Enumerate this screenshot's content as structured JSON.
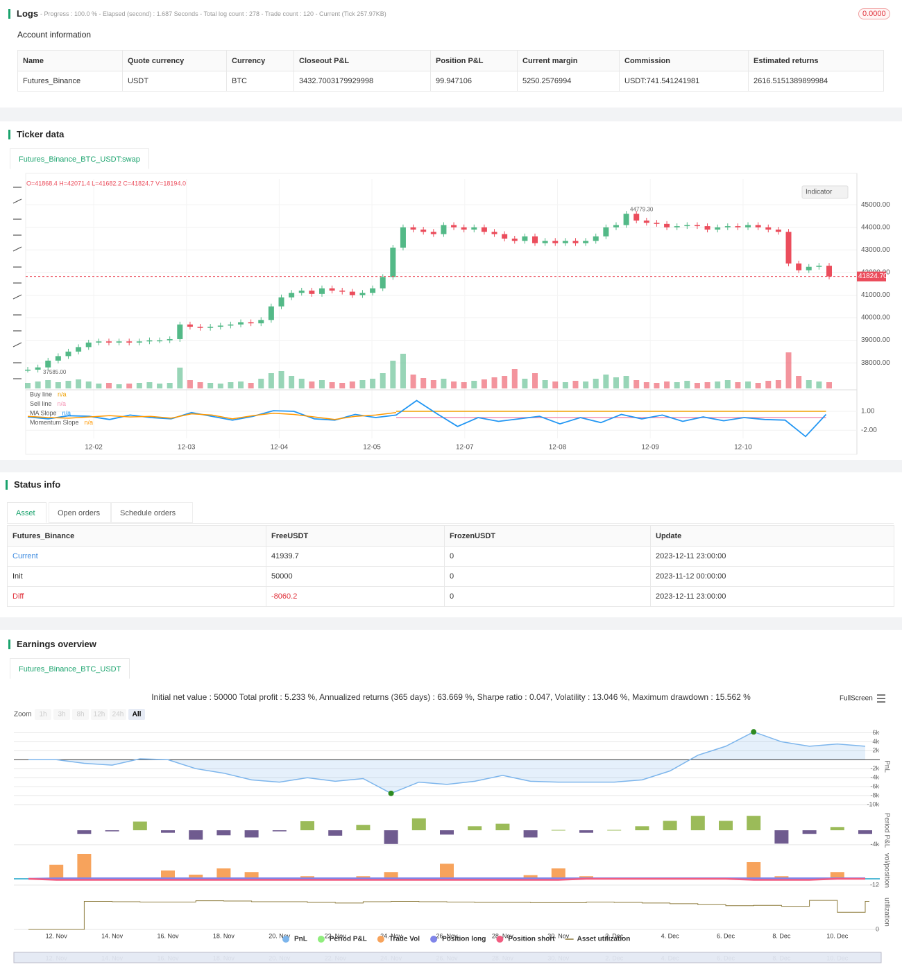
{
  "logs": {
    "title": "Logs",
    "summary": "- Progress : 100.0 % - Elapsed (second) : 1.687 Seconds - Total log count : 278 - Trade count : 120 - Current (Tick 257.97KB)",
    "badge": "0.0000"
  },
  "account": {
    "title": "Account information",
    "headers": [
      "Name",
      "Quote currency",
      "Currency",
      "Closeout P&L",
      "Position P&L",
      "Current margin",
      "Commission",
      "Estimated returns"
    ],
    "rows": [
      [
        "Futures_Binance",
        "USDT",
        "BTC",
        "3432.7003179929998",
        "99.947106",
        "5250.2576994",
        "USDT:741.541241981",
        "2616.5151389899984"
      ]
    ]
  },
  "ticker": {
    "title": "Ticker data",
    "tab": "Futures_Binance_BTC_USDT:swap",
    "indicator_button": "Indicator"
  },
  "status": {
    "title": "Status info",
    "tabs": [
      "Asset",
      "Open orders",
      "Schedule orders"
    ],
    "headers": [
      "Futures_Binance",
      "FreeUSDT",
      "FrozenUSDT",
      "Update"
    ],
    "rows": [
      [
        "Current",
        "41939.7",
        "0",
        "2023-12-11 23:00:00"
      ],
      [
        "Init",
        "50000",
        "0",
        "2023-11-12 00:00:00"
      ],
      [
        "Diff",
        "-8060.2",
        "0",
        "2023-12-11 23:00:00"
      ]
    ]
  },
  "earnings": {
    "title": "Earnings overview",
    "tab": "Futures_Binance_BTC_USDT",
    "summary": "Initial net value : 50000 Total profit : 5.233 %, Annualized returns (365 days) : 63.669 %, Sharpe ratio : 0.047, Volatility : 13.046 %, Maximum drawdown : 15.562 %",
    "fullscreen": "FullScreen",
    "zoom_label": "Zoom",
    "zoom_buttons": [
      "1h",
      "3h",
      "8h",
      "12h",
      "24h",
      "All"
    ]
  },
  "chart_data": [
    {
      "type": "candlestick",
      "ohlc_label": "O=41868.4 H=42071.4 L=41682.2 C=41824.7 V=18194.0",
      "x_labels": [
        "12-02",
        "12-03",
        "12-04",
        "12-05",
        "12-07",
        "12-08",
        "12-09",
        "12-10"
      ],
      "values": [
        37700,
        37800,
        38100,
        38300,
        38500,
        38700,
        38900,
        38950,
        38900,
        38950,
        38900,
        38950,
        39000,
        39000,
        39050,
        39700,
        39600,
        39550,
        39600,
        39650,
        39700,
        39800,
        39750,
        39900,
        40500,
        40900,
        41100,
        41200,
        41050,
        41300,
        41200,
        41150,
        41000,
        41100,
        41300,
        41800,
        43100,
        44000,
        43900,
        43800,
        43700,
        44100,
        44000,
        43900,
        44000,
        43800,
        43700,
        43500,
        43400,
        43600,
        43300,
        43400,
        43300,
        43400,
        43300,
        43400,
        43600,
        44000,
        44100,
        44600,
        44300,
        44200,
        44150,
        44000,
        44050,
        44100,
        44050,
        43900,
        44000,
        44050,
        44000,
        44100,
        44000,
        43900,
        43800,
        42400,
        42100,
        42250,
        42300,
        41824.7
      ],
      "volumes": [
        8,
        10,
        12,
        9,
        11,
        13,
        10,
        7,
        8,
        6,
        7,
        8,
        9,
        7,
        8,
        30,
        12,
        9,
        8,
        7,
        9,
        10,
        8,
        14,
        22,
        25,
        18,
        14,
        10,
        12,
        9,
        8,
        10,
        12,
        14,
        22,
        40,
        50,
        20,
        15,
        12,
        14,
        10,
        9,
        11,
        13,
        16,
        18,
        28,
        14,
        22,
        12,
        10,
        9,
        11,
        10,
        14,
        20,
        16,
        18,
        12,
        9,
        8,
        10,
        9,
        11,
        8,
        9,
        10,
        12,
        9,
        10,
        8,
        11,
        12,
        52,
        18,
        12,
        10,
        9
      ],
      "up_color": "#53b987",
      "down_color": "#eb4d5c",
      "ylim": [
        36870,
        46140
      ],
      "yticks": [
        {
          "value": 38000,
          "label": "38000.00"
        },
        {
          "value": 39000,
          "label": "39000.00"
        },
        {
          "value": 40000,
          "label": "40000.00"
        },
        {
          "value": 41000,
          "label": "41000.00"
        },
        {
          "value": 42000,
          "label": "42000.00"
        },
        {
          "value": 43000,
          "label": "43000.00"
        },
        {
          "value": 44000,
          "label": "44000.00"
        },
        {
          "value": 45000,
          "label": "45000.00"
        }
      ],
      "last_price": {
        "value": 41824.7,
        "label": "41824.70"
      },
      "high_mark": {
        "value": 44779.3,
        "label": "44779.30"
      },
      "low_mark": {
        "value": 37585,
        "label": "37585.00"
      }
    },
    {
      "type": "line",
      "ylim": [
        -3.3,
        4.3
      ],
      "yticks": [
        {
          "value": 1,
          "label": "1.00"
        },
        {
          "value": -2,
          "label": "-2.00"
        }
      ],
      "series": [
        {
          "name": "Buy line",
          "last_label": "n/a",
          "color": "#f0a000",
          "values": [
            null,
            null,
            null,
            null,
            null,
            null,
            null,
            null,
            null,
            null,
            null,
            null,
            null,
            null,
            null,
            null,
            null,
            null,
            1,
            1,
            1,
            1,
            1,
            1,
            1,
            1,
            1,
            1,
            1,
            1,
            1,
            1,
            1,
            1,
            1,
            1,
            1,
            1,
            1,
            1
          ]
        },
        {
          "name": "Sell line",
          "last_label": "n/a",
          "color": "#f48fb1",
          "values": [
            null,
            null,
            null,
            null,
            null,
            null,
            null,
            null,
            null,
            null,
            null,
            null,
            null,
            null,
            null,
            null,
            null,
            null,
            0,
            0,
            0,
            0,
            0,
            0,
            0,
            0,
            0,
            0,
            0,
            0,
            0,
            0,
            0,
            0,
            0,
            0,
            0,
            0,
            0,
            0
          ]
        },
        {
          "name": "MA Slope",
          "last_label": "n/a",
          "color": "#2196f3",
          "values": [
            0.1,
            -0.2,
            0.3,
            0.2,
            -0.3,
            0.4,
            0.0,
            -0.2,
            0.8,
            0.2,
            -0.4,
            0.2,
            1.1,
            1.0,
            -0.2,
            -0.4,
            0.5,
            0.0,
            0.4,
            2.7,
            0.6,
            -1.4,
            0.0,
            -0.6,
            -0.2,
            0.2,
            -1.0,
            0.0,
            -0.8,
            0.5,
            -0.2,
            0.4,
            -0.6,
            0.1,
            -0.5,
            0.0,
            -0.3,
            -0.4,
            -3.0,
            0.5
          ]
        },
        {
          "name": "Momentum Slope",
          "last_label": "n/a",
          "color": "#ff9800",
          "values": [
            0.2,
            0.0,
            -0.1,
            0.1,
            0.3,
            0.1,
            0.2,
            -0.1,
            0.6,
            0.4,
            -0.2,
            0.3,
            0.7,
            0.5,
            0.1,
            -0.3,
            0.2,
            0.4,
            0.8,
            null,
            null,
            null,
            null,
            null,
            null,
            null,
            null,
            null,
            null,
            null,
            null,
            null,
            null,
            null,
            null,
            null,
            null,
            null,
            null,
            null
          ]
        }
      ]
    },
    {
      "type": "area",
      "axis_title": "PnL",
      "ylim": [
        -10000,
        7000
      ],
      "x_labels": [
        "12. Nov",
        "14. Nov",
        "16. Nov",
        "18. Nov",
        "20. Nov",
        "22. Nov",
        "24. Nov",
        "26. Nov",
        "28. Nov",
        "30. Nov",
        "2. Dec",
        "4. Dec",
        "6. Dec",
        "8. Dec",
        "10. Dec"
      ],
      "yticks": [
        {
          "value": 6000,
          "label": "6k"
        },
        {
          "value": 4000,
          "label": "4k"
        },
        {
          "value": 2000,
          "label": "2k"
        },
        {
          "value": -2000,
          "label": "-2k"
        },
        {
          "value": -4000,
          "label": "-4k"
        },
        {
          "value": -6000,
          "label": "-6k"
        },
        {
          "value": -8000,
          "label": "-8k"
        },
        {
          "value": -10000,
          "label": "-10k"
        }
      ],
      "series": [
        {
          "name": "PnL",
          "color": "#7cb5ec",
          "values": [
            0,
            0,
            -800,
            -1200,
            200,
            0,
            -2000,
            -3000,
            -4500,
            -5000,
            -4000,
            -4800,
            -4200,
            -7500,
            -5000,
            -5500,
            -4800,
            -3500,
            -4800,
            -5000,
            -5000,
            -5000,
            -4500,
            -2500,
            1000,
            3000,
            6200,
            4000,
            3000,
            3500,
            3000
          ]
        }
      ]
    },
    {
      "type": "bar",
      "axis_title": "Period P&L",
      "ylim": [
        -4800,
        4800
      ],
      "yticks": [
        {
          "value": -4000,
          "label": "-4k"
        }
      ],
      "positive_color": "#9bbb59",
      "negative_color": "#6f5b8f",
      "series": [
        {
          "name": "Period P&L",
          "color": "#90ed7d",
          "values": [
            null,
            null,
            -1000,
            -300,
            2400,
            -700,
            -2600,
            -1400,
            -2000,
            -300,
            2500,
            -1500,
            1500,
            -3800,
            3300,
            -1200,
            1100,
            1800,
            -2000,
            100,
            -700,
            100,
            1100,
            2600,
            4000,
            2600,
            4000,
            -3700,
            -1000,
            900,
            -1000
          ]
        }
      ]
    },
    {
      "type": "bar",
      "axis_title": "vol/position",
      "ylim": [
        -20,
        52
      ],
      "yticks": [
        -12
      ],
      "series": [
        {
          "name": "Trade Vol",
          "color": "#f7a35c",
          "values": [
            0,
            27,
            48,
            0,
            0,
            16,
            8,
            20,
            13,
            0,
            5,
            0,
            5,
            13,
            0,
            29,
            0,
            0,
            7,
            20,
            5,
            0,
            0,
            0,
            0,
            0,
            32,
            5,
            0,
            13,
            0
          ]
        },
        {
          "name": "Position long",
          "color": "#8085e9",
          "values": [
            0,
            1,
            1,
            1,
            1,
            1,
            1,
            1,
            1,
            1,
            1,
            1,
            1,
            1,
            1,
            1,
            1,
            1,
            1,
            1,
            1,
            1,
            1,
            1,
            1,
            1,
            1,
            1,
            1,
            1,
            1
          ]
        },
        {
          "name": "Position short",
          "color": "#f15c80",
          "values": [
            0,
            -2,
            -2,
            -2,
            -2,
            -2,
            -2,
            -2,
            -2,
            -2,
            -2,
            -2,
            -2,
            -2,
            -2,
            -2,
            -2,
            -2,
            -2,
            -2,
            0,
            0,
            0,
            0,
            0,
            0,
            -2,
            -2,
            -2,
            0,
            0
          ]
        }
      ]
    },
    {
      "type": "step",
      "axis_title": "utilization",
      "ylim": [
        0,
        1.05
      ],
      "yticks": [
        0
      ],
      "series": [
        {
          "name": "Asset utilization",
          "color": "#8d7b3c",
          "values": [
            0,
            0,
            0.85,
            0.84,
            0.83,
            0.83,
            0.87,
            0.86,
            0.84,
            0.84,
            0.82,
            0.8,
            0.84,
            0.85,
            0.84,
            0.83,
            0.82,
            0.82,
            0.81,
            0.81,
            0.83,
            0.82,
            0.8,
            0.78,
            0.75,
            0.72,
            0.73,
            0.7,
            0.88,
            0.52,
            0.85
          ]
        }
      ]
    }
  ]
}
